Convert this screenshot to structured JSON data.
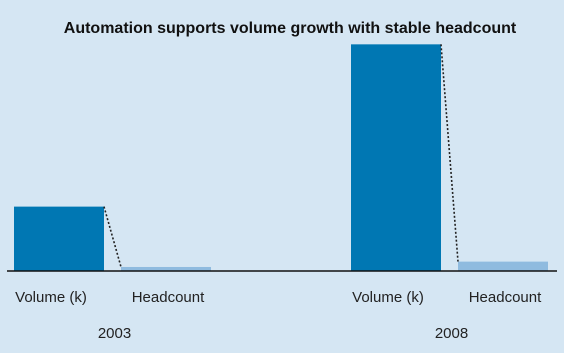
{
  "chart_data": {
    "type": "bar",
    "title": "Automation supports volume growth with stable headcount",
    "groups": [
      "2003",
      "2008"
    ],
    "categories": [
      "Volume (k)",
      "Headcount"
    ],
    "series": [
      {
        "values": [
          4.8,
          0.3
        ]
      },
      {
        "values": [
          16.9,
          0.7
        ]
      }
    ],
    "ylim": [
      0,
      17
    ],
    "grid": false,
    "legend": "none",
    "connector": "dotted",
    "colors": {
      "background": "#d5e6f3",
      "volume_bar": "#0077b3",
      "headcount_bar": "#8fbbdf",
      "baseline": "#111111",
      "connector": "#222222",
      "text": "#111111"
    }
  }
}
